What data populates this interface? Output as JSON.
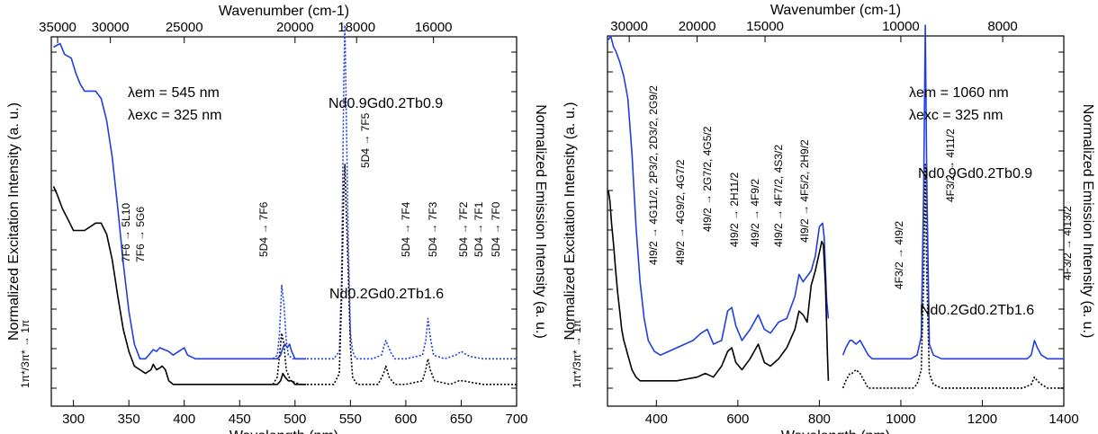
{
  "chart_data": [
    {
      "type": "line",
      "panel": "left",
      "xlabel": "Wavelength (nm)",
      "x2label": "Wavenumber (cm-1)",
      "ylabel": "Normalized Excitation Intensity (a. u.)",
      "y2label": "Normalized Emission Intensity (a. u.)",
      "xlim": [
        280,
        700
      ],
      "x_ticks": [
        300,
        350,
        400,
        450,
        500,
        550,
        600,
        650,
        700
      ],
      "x2_ticks": [
        35000,
        30000,
        25000,
        20000,
        18000,
        16000
      ],
      "condition_lines": [
        "λem = 545 nm",
        "λexc = 325 nm"
      ],
      "sample_labels": [
        {
          "text": "Nd0.9Gd0.2Tb0.9",
          "color": "#1f3fe0"
        },
        {
          "text": "Nd0.2Gd0.2Tb1.6",
          "color": "#000000"
        }
      ],
      "annotations": [
        "1π*/3π* → 1π",
        "7F6 → 5G6",
        "7F6 → 5L10",
        "5D4 → 7F6",
        "5D4 → 7F5",
        "5D4 → 7F4",
        "5D4 → 7F3",
        "5D4 → 7F2",
        "5D4 → 7F1",
        "5D4 → 7F0"
      ],
      "series": [
        {
          "name": "Nd0.9Gd0.2Tb0.9",
          "kind": "excitation",
          "color": "#1f3fe0",
          "dash": false,
          "x": [
            282,
            288,
            292,
            298,
            302,
            306,
            310,
            315,
            320,
            325,
            330,
            335,
            340,
            345,
            350,
            355,
            360,
            365,
            368,
            372,
            375,
            378,
            382,
            386,
            390,
            395,
            400,
            403,
            410,
            420,
            430,
            440,
            450,
            460,
            470,
            480,
            484,
            487,
            489,
            491,
            493,
            495,
            497,
            500,
            503,
            506,
            510
          ],
          "y": [
            0.94,
            0.95,
            0.92,
            0.91,
            0.87,
            0.84,
            0.82,
            0.82,
            0.82,
            0.8,
            0.74,
            0.64,
            0.5,
            0.35,
            0.22,
            0.13,
            0.09,
            0.09,
            0.1,
            0.115,
            0.11,
            0.12,
            0.115,
            0.11,
            0.1,
            0.11,
            0.12,
            0.1,
            0.09,
            0.09,
            0.09,
            0.09,
            0.09,
            0.09,
            0.09,
            0.09,
            0.09,
            0.1,
            0.12,
            0.13,
            0.12,
            0.13,
            0.11,
            0.09,
            0.09,
            0.09,
            0.09
          ]
        },
        {
          "name": "Nd0.9Gd0.2Tb0.9",
          "kind": "emission",
          "color": "#1f3fe0",
          "dash": true,
          "x": [
            480,
            484,
            486,
            488,
            490,
            492,
            494,
            498,
            505,
            520,
            535,
            540,
            542,
            544,
            545,
            546,
            548,
            550,
            552,
            555,
            560,
            570,
            578,
            582,
            586,
            590,
            600,
            615,
            618,
            620,
            622,
            625,
            635,
            645,
            650,
            655,
            660,
            670,
            680,
            690,
            700
          ],
          "y": [
            0.09,
            0.1,
            0.16,
            0.29,
            0.24,
            0.14,
            0.1,
            0.09,
            0.09,
            0.09,
            0.09,
            0.11,
            0.3,
            0.85,
            1.0,
            0.82,
            0.42,
            0.16,
            0.11,
            0.09,
            0.09,
            0.09,
            0.1,
            0.14,
            0.11,
            0.09,
            0.09,
            0.1,
            0.14,
            0.2,
            0.15,
            0.1,
            0.09,
            0.1,
            0.11,
            0.1,
            0.095,
            0.09,
            0.09,
            0.09,
            0.09
          ]
        },
        {
          "name": "Nd0.2Gd0.2Tb1.6",
          "kind": "excitation",
          "color": "#000000",
          "dash": false,
          "x": [
            282,
            285,
            290,
            295,
            300,
            305,
            310,
            315,
            320,
            325,
            330,
            335,
            340,
            345,
            350,
            355,
            360,
            365,
            370,
            372,
            375,
            378,
            380,
            383,
            386,
            390,
            395,
            400,
            420,
            440,
            460,
            480,
            484,
            487,
            489,
            491,
            494,
            497,
            500,
            505,
            510
          ],
          "y": [
            0.56,
            0.54,
            0.5,
            0.47,
            0.44,
            0.44,
            0.44,
            0.45,
            0.46,
            0.46,
            0.43,
            0.36,
            0.26,
            0.17,
            0.11,
            0.07,
            0.06,
            0.05,
            0.06,
            0.075,
            0.06,
            0.065,
            0.07,
            0.06,
            0.03,
            0.02,
            0.02,
            0.02,
            0.02,
            0.02,
            0.02,
            0.02,
            0.02,
            0.03,
            0.05,
            0.04,
            0.03,
            0.03,
            0.02,
            0.02,
            0.02
          ]
        },
        {
          "name": "Nd0.2Gd0.2Tb1.6",
          "kind": "emission",
          "color": "#000000",
          "dash": true,
          "x": [
            480,
            484,
            486,
            488,
            490,
            492,
            496,
            505,
            520,
            535,
            540,
            542,
            544,
            545,
            546,
            548,
            550,
            552,
            556,
            565,
            575,
            580,
            582,
            585,
            590,
            600,
            615,
            618,
            620,
            622,
            626,
            640,
            648,
            652,
            660,
            670,
            680,
            690,
            700
          ],
          "y": [
            0.02,
            0.04,
            0.1,
            0.16,
            0.13,
            0.06,
            0.03,
            0.02,
            0.02,
            0.02,
            0.05,
            0.25,
            0.55,
            0.62,
            0.52,
            0.33,
            0.12,
            0.04,
            0.02,
            0.02,
            0.02,
            0.05,
            0.07,
            0.04,
            0.02,
            0.02,
            0.03,
            0.06,
            0.09,
            0.06,
            0.03,
            0.02,
            0.03,
            0.03,
            0.025,
            0.02,
            0.02,
            0.02,
            0.02
          ]
        }
      ]
    },
    {
      "type": "line",
      "panel": "right",
      "xlabel": "Wavelength (nm)",
      "x2label": "Wavenumber (cm-1)",
      "ylabel": "Normalized Excitation Intensity (a. u.)",
      "y2label": "Normalized Emission Intensity (a. u.)",
      "xlim": [
        280,
        1400
      ],
      "x_ticks": [
        400,
        600,
        800,
        1000,
        1200,
        1400
      ],
      "x2_ticks": [
        30000,
        20000,
        15000,
        10000,
        8000
      ],
      "condition_lines": [
        "λem = 1060 nm",
        "λexc = 325 nm"
      ],
      "sample_labels": [
        {
          "text": "Nd0.9Gd0.2Tb0.9",
          "color": "#1f3fe0"
        },
        {
          "text": "Nd0.2Gd0.2Tb1.6",
          "color": "#000000"
        }
      ],
      "annotations": [
        "1π*/3π* → 1π",
        "4I9/2 → 4G11/2, 2P3/2, 2D3/2, 2G9/2",
        "4I9/2 → 4G9/2, 4G7/2",
        "4I9/2 → 2G7/2, 4G5/2",
        "4I9/2 → 2H11/2",
        "4I9/2 → 4F9/2",
        "4I9/2 → 4F7/2, 4S3/2",
        "4I9/2 → 4F5/2, 2H9/2",
        "4F3/2 → 4I9/2",
        "4F3/2 → 4I11/2",
        "4F3/2 → 4I13/2"
      ],
      "series": [
        {
          "name": "Nd0.9Gd0.2Tb0.9",
          "kind": "excitation",
          "color": "#1f3fe0",
          "dash": false,
          "x": [
            282,
            288,
            295,
            300,
            310,
            320,
            330,
            340,
            350,
            360,
            370,
            380,
            395,
            410,
            430,
            450,
            470,
            490,
            510,
            525,
            540,
            560,
            575,
            585,
            595,
            610,
            630,
            650,
            665,
            680,
            700,
            720,
            740,
            750,
            760,
            780,
            790,
            800,
            808,
            812,
            818,
            822
          ],
          "y": [
            0.96,
            0.97,
            0.94,
            0.93,
            0.9,
            0.86,
            0.8,
            0.65,
            0.45,
            0.3,
            0.2,
            0.14,
            0.11,
            0.1,
            0.11,
            0.12,
            0.13,
            0.14,
            0.16,
            0.17,
            0.13,
            0.14,
            0.22,
            0.23,
            0.18,
            0.14,
            0.17,
            0.21,
            0.17,
            0.16,
            0.19,
            0.2,
            0.26,
            0.32,
            0.3,
            0.33,
            0.37,
            0.45,
            0.46,
            0.42,
            0.25,
            0.2
          ]
        },
        {
          "name": "Nd0.9Gd0.2Tb0.9",
          "kind": "emission",
          "color": "#1f3fe0",
          "dash": false,
          "x": [
            858,
            865,
            875,
            880,
            890,
            900,
            910,
            920,
            930,
            960,
            990,
            1010,
            1025,
            1040,
            1050,
            1056,
            1060,
            1064,
            1070,
            1080,
            1100,
            1130,
            1160,
            1200,
            1250,
            1290,
            1310,
            1320,
            1328,
            1335,
            1345,
            1360,
            1380,
            1400
          ],
          "y": [
            0.1,
            0.12,
            0.14,
            0.14,
            0.13,
            0.14,
            0.12,
            0.1,
            0.09,
            0.09,
            0.09,
            0.09,
            0.09,
            0.1,
            0.15,
            0.55,
            1.0,
            0.55,
            0.13,
            0.1,
            0.09,
            0.09,
            0.09,
            0.09,
            0.09,
            0.09,
            0.09,
            0.1,
            0.14,
            0.12,
            0.1,
            0.09,
            0.09,
            0.09
          ]
        },
        {
          "name": "Nd0.2Gd0.2Tb1.6",
          "kind": "excitation",
          "color": "#000000",
          "dash": false,
          "x": [
            282,
            286,
            290,
            295,
            300,
            305,
            310,
            315,
            320,
            325,
            330,
            335,
            340,
            345,
            350,
            360,
            380,
            400,
            450,
            500,
            520,
            540,
            560,
            575,
            585,
            595,
            610,
            630,
            650,
            665,
            680,
            700,
            720,
            740,
            750,
            760,
            770,
            780,
            790,
            800,
            806,
            810,
            815,
            820,
            822
          ],
          "y": [
            0.55,
            0.52,
            0.46,
            0.4,
            0.33,
            0.27,
            0.22,
            0.17,
            0.14,
            0.12,
            0.1,
            0.08,
            0.06,
            0.05,
            0.04,
            0.03,
            0.03,
            0.03,
            0.03,
            0.04,
            0.05,
            0.04,
            0.07,
            0.11,
            0.12,
            0.08,
            0.06,
            0.09,
            0.13,
            0.08,
            0.07,
            0.09,
            0.12,
            0.17,
            0.22,
            0.21,
            0.19,
            0.29,
            0.33,
            0.38,
            0.41,
            0.4,
            0.29,
            0.1,
            0.03
          ]
        },
        {
          "name": "Nd0.2Gd0.2Tb1.6",
          "kind": "emission",
          "color": "#000000",
          "dash": true,
          "x": [
            858,
            865,
            875,
            880,
            890,
            900,
            910,
            920,
            940,
            980,
            1010,
            1030,
            1040,
            1050,
            1056,
            1060,
            1064,
            1070,
            1080,
            1100,
            1150,
            1200,
            1250,
            1300,
            1320,
            1328,
            1335,
            1345,
            1360,
            1380,
            1400
          ],
          "y": [
            0.01,
            0.03,
            0.05,
            0.05,
            0.06,
            0.05,
            0.03,
            0.01,
            0.01,
            0.01,
            0.01,
            0.01,
            0.02,
            0.06,
            0.3,
            0.62,
            0.3,
            0.05,
            0.02,
            0.01,
            0.01,
            0.01,
            0.01,
            0.01,
            0.02,
            0.04,
            0.03,
            0.02,
            0.01,
            0.01,
            0.01
          ]
        }
      ]
    }
  ]
}
